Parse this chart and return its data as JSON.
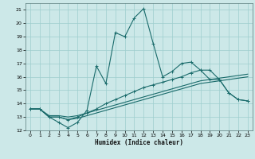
{
  "xlabel": "Humidex (Indice chaleur)",
  "bg_color": "#cce8e8",
  "grid_color": "#9ecece",
  "line_color": "#1a6b6b",
  "xlim": [
    -0.5,
    23.5
  ],
  "ylim": [
    12,
    21.5
  ],
  "yticks": [
    12,
    13,
    14,
    15,
    16,
    17,
    18,
    19,
    20,
    21
  ],
  "xticks": [
    0,
    1,
    2,
    3,
    4,
    5,
    6,
    7,
    8,
    9,
    10,
    11,
    12,
    13,
    14,
    15,
    16,
    17,
    18,
    19,
    20,
    21,
    22,
    23
  ],
  "lines": [
    {
      "x": [
        0,
        1,
        2,
        3,
        4,
        5,
        6,
        7,
        8,
        9,
        10,
        11,
        12,
        13,
        14,
        15,
        16,
        17,
        18,
        19,
        20,
        21,
        22,
        23
      ],
      "y": [
        13.6,
        13.6,
        13.0,
        12.6,
        12.2,
        12.6,
        13.5,
        16.8,
        15.5,
        19.3,
        19.0,
        20.4,
        21.1,
        18.5,
        16.0,
        16.4,
        17.0,
        17.1,
        16.5,
        15.8,
        15.8,
        14.8,
        14.3,
        14.2
      ],
      "marker": true
    },
    {
      "x": [
        0,
        1,
        2,
        3,
        4,
        5,
        6,
        7,
        8,
        9,
        10,
        11,
        12,
        13,
        14,
        15,
        16,
        17,
        18,
        19,
        20,
        21,
        22,
        23
      ],
      "y": [
        13.6,
        13.6,
        13.0,
        13.0,
        12.8,
        13.0,
        13.3,
        13.6,
        14.0,
        14.3,
        14.6,
        14.9,
        15.2,
        15.4,
        15.6,
        15.8,
        16.0,
        16.3,
        16.5,
        16.5,
        15.8,
        14.8,
        14.3,
        14.2
      ],
      "marker": true
    },
    {
      "x": [
        0,
        1,
        2,
        3,
        4,
        5,
        6,
        7,
        8,
        9,
        10,
        11,
        12,
        13,
        14,
        15,
        16,
        17,
        18,
        19,
        20,
        21,
        22,
        23
      ],
      "y": [
        13.6,
        13.6,
        13.1,
        13.1,
        13.0,
        13.1,
        13.3,
        13.5,
        13.7,
        13.9,
        14.1,
        14.3,
        14.5,
        14.7,
        14.9,
        15.1,
        15.3,
        15.5,
        15.7,
        15.8,
        15.9,
        16.0,
        16.1,
        16.2
      ],
      "marker": false
    },
    {
      "x": [
        0,
        1,
        2,
        3,
        4,
        5,
        6,
        7,
        8,
        9,
        10,
        11,
        12,
        13,
        14,
        15,
        16,
        17,
        18,
        19,
        20,
        21,
        22,
        23
      ],
      "y": [
        13.6,
        13.6,
        13.0,
        13.0,
        12.8,
        12.9,
        13.1,
        13.3,
        13.5,
        13.7,
        13.9,
        14.1,
        14.3,
        14.5,
        14.7,
        14.9,
        15.1,
        15.3,
        15.5,
        15.6,
        15.7,
        15.8,
        15.9,
        16.0
      ],
      "marker": false
    }
  ]
}
